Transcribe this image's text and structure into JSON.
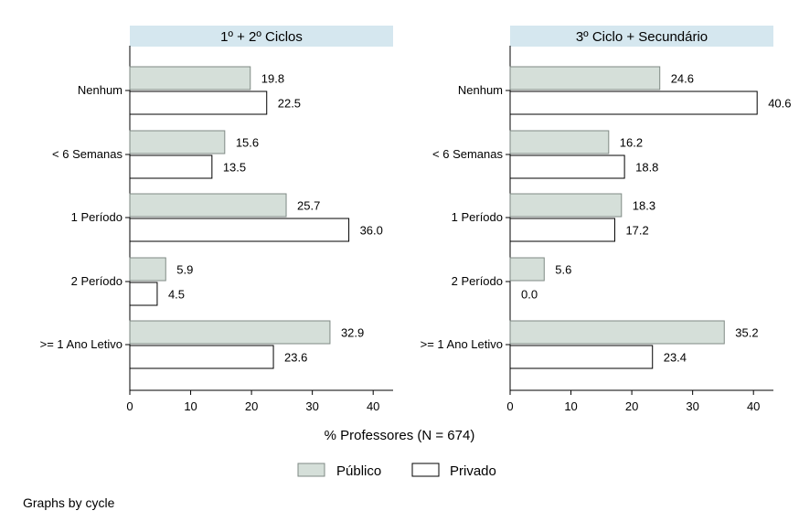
{
  "chart_data": {
    "type": "bar",
    "orientation": "horizontal",
    "xlabel": "% Professores (N = 674)",
    "xlim": [
      0,
      43
    ],
    "xticks": [
      0,
      10,
      20,
      30,
      40
    ],
    "categories": [
      "Nenhum",
      "< 6 Semanas",
      "1 Período",
      "2 Período",
      ">= 1 Ano Letivo"
    ],
    "legend": {
      "placement": "bottom",
      "entries": [
        {
          "name": "Público",
          "color": "#d5dfd9"
        },
        {
          "name": "Privado",
          "color": "#ffffff"
        }
      ]
    },
    "panels": [
      {
        "title": "1º + 2º Ciclos",
        "series": [
          {
            "name": "Público",
            "values": [
              19.8,
              15.6,
              25.7,
              5.9,
              32.9
            ]
          },
          {
            "name": "Privado",
            "values": [
              22.5,
              13.5,
              36.0,
              4.5,
              23.6
            ]
          }
        ]
      },
      {
        "title": "3º Ciclo + Secundário",
        "series": [
          {
            "name": "Público",
            "values": [
              24.6,
              16.2,
              18.3,
              5.6,
              35.2
            ]
          },
          {
            "name": "Privado",
            "values": [
              40.6,
              18.8,
              17.2,
              0.0,
              23.4
            ]
          }
        ]
      }
    ],
    "grid": false
  },
  "note": "Graphs by cycle",
  "colors": {
    "strip": "#d5e7ef",
    "publico": "#d5dfd9",
    "privado": "#ffffff",
    "axis": "#000000"
  }
}
